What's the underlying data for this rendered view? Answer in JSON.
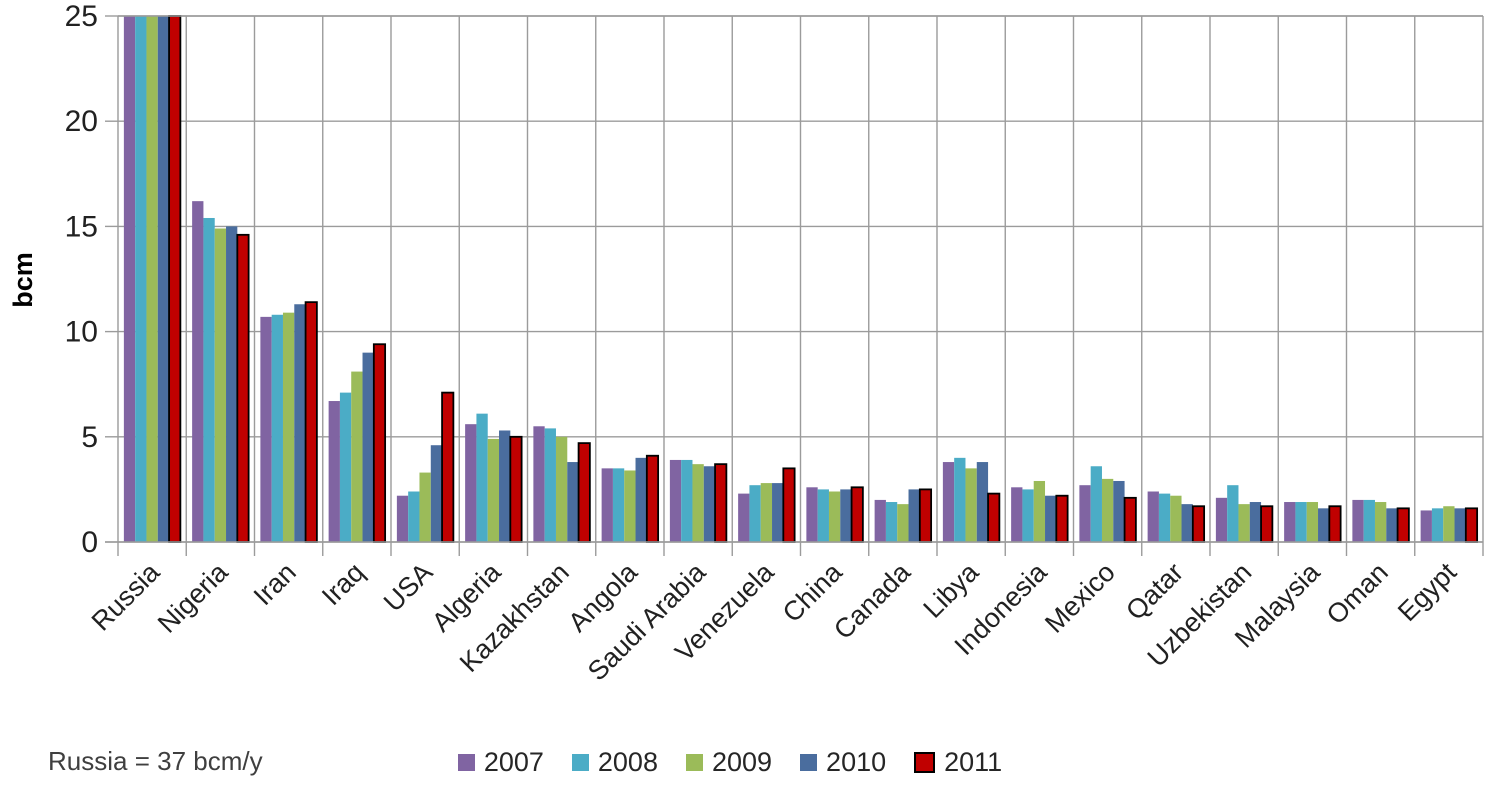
{
  "chart_data": {
    "type": "bar",
    "title": "",
    "xlabel": "",
    "ylabel": "bcm",
    "ylim": [
      0,
      25
    ],
    "yticks": [
      0,
      5,
      10,
      15,
      20,
      25
    ],
    "grid": true,
    "legend_position": "bottom",
    "note": "Russia = 37 bcm/y",
    "clip_note": "Russia bars exceed the axis maximum and are clipped at 25 bcm",
    "categories": [
      "Russia",
      "Nigeria",
      "Iran",
      "Iraq",
      "USA",
      "Algeria",
      "Kazakhstan",
      "Angola",
      "Saudi Arabia",
      "Venezuela",
      "China",
      "Canada",
      "Libya",
      "Indonesia",
      "Mexico",
      "Qatar",
      "Uzbekistan",
      "Malaysia",
      "Oman",
      "Egypt"
    ],
    "series": [
      {
        "name": "2007",
        "color": "#8064A2",
        "values": [
          37,
          16.2,
          10.7,
          6.7,
          2.2,
          5.6,
          5.5,
          3.5,
          3.9,
          2.3,
          2.6,
          2.0,
          3.8,
          2.6,
          2.7,
          2.4,
          2.1,
          1.9,
          2.0,
          1.5
        ]
      },
      {
        "name": "2008",
        "color": "#4BACC6",
        "values": [
          37,
          15.4,
          10.8,
          7.1,
          2.4,
          6.1,
          5.4,
          3.5,
          3.9,
          2.7,
          2.5,
          1.9,
          4.0,
          2.5,
          3.6,
          2.3,
          2.7,
          1.9,
          2.0,
          1.6
        ]
      },
      {
        "name": "2009",
        "color": "#9BBB59",
        "values": [
          37,
          14.9,
          10.9,
          8.1,
          3.3,
          4.9,
          5.0,
          3.4,
          3.7,
          2.8,
          2.4,
          1.8,
          3.5,
          2.9,
          3.0,
          2.2,
          1.8,
          1.9,
          1.9,
          1.7
        ]
      },
      {
        "name": "2010",
        "color": "#4A6D9E",
        "values": [
          37,
          15.0,
          11.3,
          9.0,
          4.6,
          5.3,
          3.8,
          4.0,
          3.6,
          2.8,
          2.5,
          2.5,
          3.8,
          2.2,
          2.9,
          1.8,
          1.9,
          1.6,
          1.6,
          1.6
        ]
      },
      {
        "name": "2011",
        "color": "#C00000",
        "border": "#000000",
        "values": [
          37,
          14.6,
          11.4,
          9.4,
          7.1,
          5.0,
          4.7,
          4.1,
          3.7,
          3.5,
          2.6,
          2.5,
          2.3,
          2.2,
          2.1,
          1.7,
          1.7,
          1.7,
          1.6,
          1.6
        ]
      }
    ]
  },
  "colors": {
    "gridline": "#9b9b9b",
    "axis_text": "#212121",
    "note_text": "#3f3f3f",
    "background": "#ffffff"
  }
}
